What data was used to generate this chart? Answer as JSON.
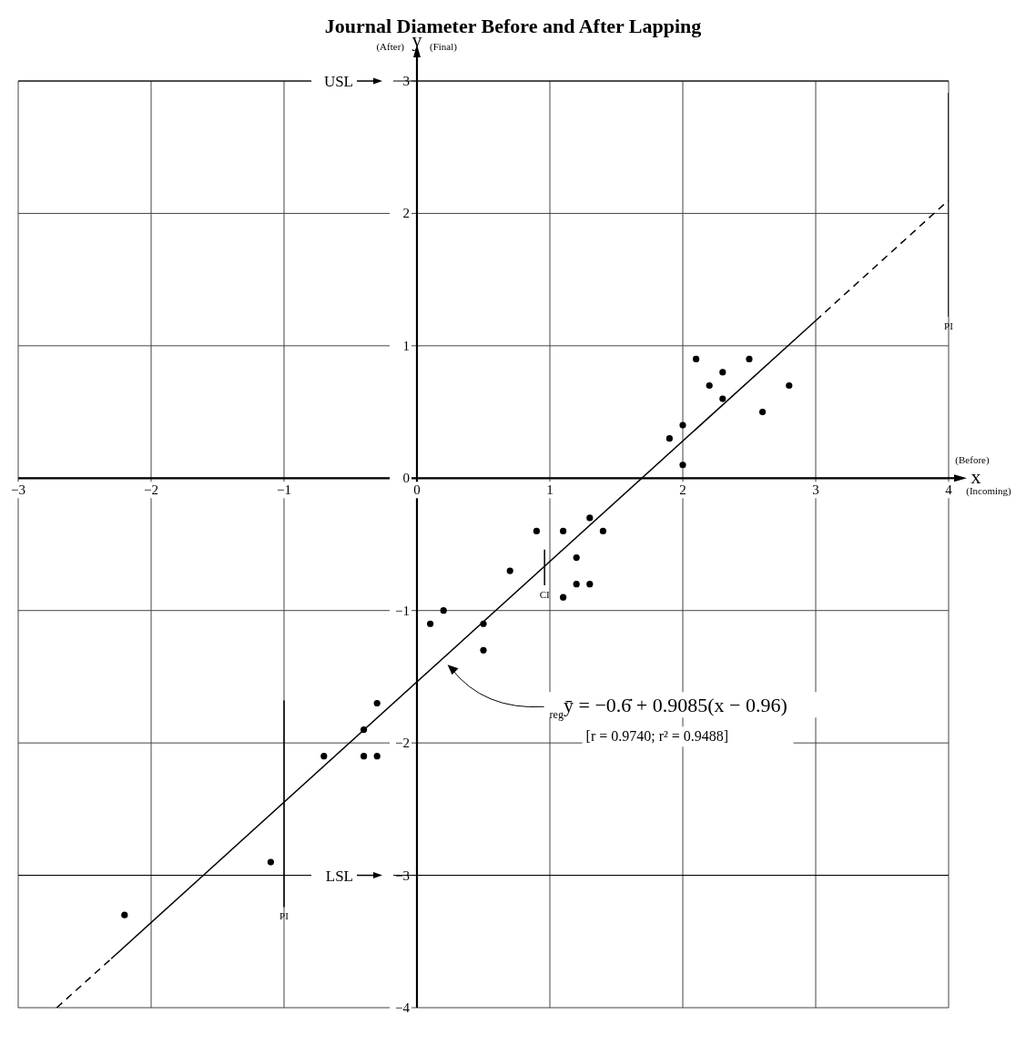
{
  "chart_data": {
    "type": "scatter",
    "title": "Journal Diameter Before and After Lapping",
    "xlabel": "x",
    "ylabel": "y",
    "xlim": [
      -3,
      4
    ],
    "ylim": [
      -4,
      3
    ],
    "xticks": [
      -3,
      -2,
      -1,
      0,
      1,
      2,
      3,
      4
    ],
    "yticks": [
      -4,
      -3,
      -2,
      -1,
      0,
      1,
      2,
      3
    ],
    "grid": true,
    "legend": false,
    "series": [
      {
        "color": "#000000",
        "marker": "circle",
        "x": [
          2.1,
          2.5,
          2.3,
          2.2,
          2.8,
          2.3,
          2.6,
          2.0,
          1.9,
          2.0,
          1.3,
          0.9,
          1.1,
          1.4,
          1.2,
          0.7,
          1.2,
          1.3,
          1.1,
          0.2,
          0.1,
          0.5,
          0.5,
          -0.3,
          -0.4,
          -0.7,
          -0.4,
          -0.3,
          -1.1,
          -2.2
        ],
        "values": [
          0.9,
          0.9,
          0.8,
          0.7,
          0.7,
          0.6,
          0.5,
          0.4,
          0.3,
          0.1,
          -0.3,
          -0.4,
          -0.4,
          -0.4,
          -0.6,
          -0.7,
          -0.8,
          -0.8,
          -0.9,
          -1.0,
          -1.1,
          -1.1,
          -1.3,
          -1.7,
          -1.9,
          -2.1,
          -2.1,
          -2.1,
          -2.9,
          -3.3
        ]
      },
      {
        "type": "line",
        "color": "#000000",
        "marker": "none",
        "line_style": "solid",
        "x": [
          -2.3,
          3.0
        ],
        "values": [
          -3.63,
          1.19
        ]
      },
      {
        "type": "line",
        "color": "#000000",
        "marker": "none",
        "line_style": "dashed",
        "x": [
          3.0,
          4.0
        ],
        "values": [
          1.19,
          2.1
        ]
      },
      {
        "type": "line",
        "color": "#000000",
        "marker": "none",
        "line_style": "dashed",
        "x": [
          -2.71,
          -2.3
        ],
        "values": [
          -4.0,
          -3.63
        ]
      },
      {
        "type": "line",
        "color": "#000000",
        "marker": "none",
        "line_style": "solid",
        "x": [
          -1,
          -1
        ],
        "values": [
          -3.24,
          -1.68
        ]
      },
      {
        "type": "line",
        "color": "#000000",
        "marker": "none",
        "line_style": "solid",
        "x": [
          0.96,
          0.96
        ],
        "values": [
          -0.81,
          -0.54
        ]
      },
      {
        "type": "line",
        "color": "#000000",
        "marker": "none",
        "line_style": "solid",
        "x": [
          4,
          4
        ],
        "values": [
          1.22,
          2.91
        ]
      }
    ],
    "ref_lines": [
      {
        "axis": "y",
        "value": 3,
        "label": "USL",
        "color": "#000000"
      },
      {
        "axis": "y",
        "value": -3,
        "label": "LSL",
        "color": "#000000"
      }
    ],
    "annotations": [
      {
        "text": "PI",
        "x": -1,
        "y": -3.24
      },
      {
        "text": "CI",
        "x": 0.96,
        "y": -0.81
      },
      {
        "text": "PI",
        "x": 4,
        "y": 1.22
      },
      "$_{reg}$ȳ = −0.6̇ + 0.9085(x − 0.96)",
      "(After)",
      "(Final)",
      "(Before)",
      "(Incoming)",
      "[r = 0.9740;    r² = 0.9488]"
    ]
  }
}
